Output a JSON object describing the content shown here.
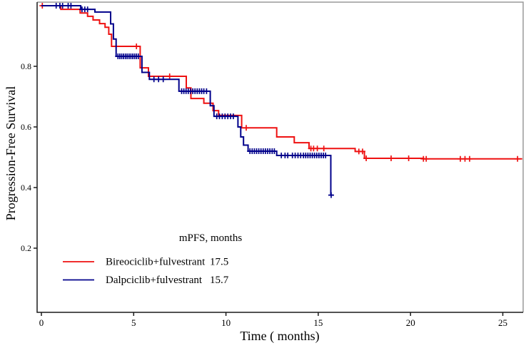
{
  "figure": {
    "background": "#ffffff"
  },
  "chart_data": {
    "type": "line",
    "subtype": "kaplan-meier-step-survival",
    "title": "",
    "xlabel": "Time ( months)",
    "ylabel": "Progression-Free Survival",
    "xlim": [
      0,
      26
    ],
    "ylim": [
      0,
      1.0
    ],
    "xticks": [
      0,
      5,
      10,
      15,
      20,
      25
    ],
    "yticks": [
      0.2,
      0.4,
      0.6,
      0.8
    ],
    "grid": false,
    "legend": {
      "header": "mPFS, months",
      "position": "lower-left-inside",
      "entries": [
        {
          "name": "Bireociclib+fulvestrant",
          "mpfs_months": "17.5",
          "color": "#ee1111"
        },
        {
          "name": "Dalpciclib+fulvestrant",
          "mpfs_months": "15.7",
          "color": "#00008b"
        }
      ]
    },
    "series": [
      {
        "name": "Bireociclib+fulvestrant",
        "color": "#ee1111",
        "median_pfs_months": 17.5,
        "end_time": 26.05,
        "steps": [
          [
            0,
            1.0
          ],
          [
            1.05,
            0.988
          ],
          [
            2.1,
            0.976
          ],
          [
            2.5,
            0.965
          ],
          [
            2.8,
            0.953
          ],
          [
            3.15,
            0.941
          ],
          [
            3.45,
            0.929
          ],
          [
            3.65,
            0.906
          ],
          [
            3.8,
            0.866
          ],
          [
            5.35,
            0.795
          ],
          [
            5.8,
            0.767
          ],
          [
            7.85,
            0.729
          ],
          [
            8.1,
            0.694
          ],
          [
            8.8,
            0.678
          ],
          [
            9.3,
            0.654
          ],
          [
            9.6,
            0.638
          ],
          [
            10.85,
            0.597
          ],
          [
            12.75,
            0.567
          ],
          [
            13.7,
            0.548
          ],
          [
            14.5,
            0.529
          ],
          [
            17.0,
            0.519
          ],
          [
            17.5,
            0.4965
          ],
          [
            20.7,
            0.4945
          ]
        ],
        "censor_times": [
          0.05,
          4.05,
          5.15,
          6.95,
          11.1,
          14.6,
          14.75,
          14.95,
          15.3,
          17.2,
          17.4,
          17.6,
          18.95,
          19.9,
          20.7,
          20.85,
          22.7,
          22.95,
          23.2,
          25.8
        ]
      },
      {
        "name": "Dalpciclib+fulvestrant",
        "color": "#00008b",
        "median_pfs_months": 15.7,
        "end_time": 15.78,
        "steps": [
          [
            0,
            1.0
          ],
          [
            2.13,
            0.988
          ],
          [
            2.9,
            0.979
          ],
          [
            3.75,
            0.94
          ],
          [
            3.9,
            0.89
          ],
          [
            4.05,
            0.833
          ],
          [
            5.45,
            0.78
          ],
          [
            5.85,
            0.757
          ],
          [
            7.45,
            0.718
          ],
          [
            9.15,
            0.67
          ],
          [
            9.35,
            0.635
          ],
          [
            10.65,
            0.6
          ],
          [
            10.8,
            0.567
          ],
          [
            10.95,
            0.54
          ],
          [
            11.2,
            0.52
          ],
          [
            12.75,
            0.506
          ],
          [
            15.68,
            0.375
          ]
        ],
        "censor_times": [
          0.8,
          1.0,
          1.15,
          1.45,
          1.6,
          2.2,
          2.35,
          2.5,
          4.15,
          4.25,
          4.35,
          4.45,
          4.55,
          4.65,
          4.75,
          4.85,
          4.95,
          5.05,
          5.15,
          5.25,
          6.1,
          6.35,
          6.6,
          7.6,
          7.72,
          7.84,
          7.96,
          8.08,
          8.2,
          8.32,
          8.44,
          8.56,
          8.68,
          8.8,
          8.95,
          9.5,
          9.65,
          9.8,
          9.95,
          10.1,
          10.25,
          10.4,
          11.3,
          11.42,
          11.54,
          11.66,
          11.78,
          11.9,
          12.02,
          12.14,
          12.26,
          12.38,
          12.5,
          12.62,
          13.0,
          13.2,
          13.35,
          13.6,
          13.75,
          13.9,
          14.05,
          14.2,
          14.32,
          14.44,
          14.56,
          14.68,
          14.8,
          14.92,
          15.04,
          15.16,
          15.28,
          15.4,
          15.7
        ]
      }
    ]
  }
}
